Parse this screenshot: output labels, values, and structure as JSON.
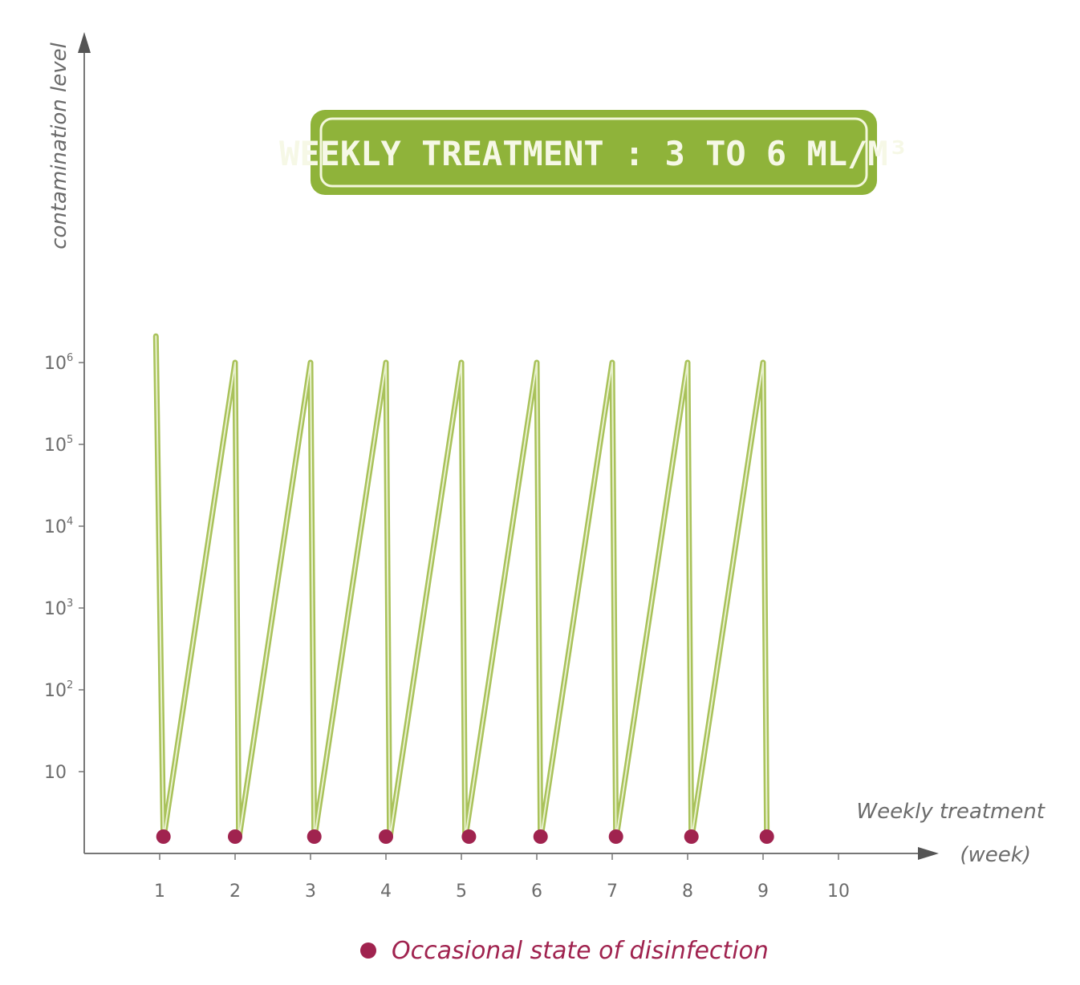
{
  "chart_data": {
    "type": "line",
    "title": "WEEKLY TREATMENT : 3 TO 6 ML/M³",
    "ylabel": "contamination level",
    "xlabel": "Weekly treatment",
    "xunit": "(week)",
    "xticks": [
      "1",
      "2",
      "3",
      "4",
      "5",
      "6",
      "7",
      "8",
      "9",
      "10"
    ],
    "yticks": [
      {
        "base": "10",
        "exp": ""
      },
      {
        "base": "10",
        "exp": "2"
      },
      {
        "base": "10",
        "exp": "3"
      },
      {
        "base": "10",
        "exp": "4"
      },
      {
        "base": "10",
        "exp": "5"
      },
      {
        "base": "10",
        "exp": "6"
      }
    ],
    "yscale": "log",
    "ylim": [
      1,
      10000000
    ],
    "xlim": [
      0,
      11
    ],
    "series": [
      {
        "name": "Weekly treatment",
        "color": "#a9c25a",
        "points": [
          [
            0.95,
            2100000
          ],
          [
            1.05,
            1.5
          ],
          [
            2.0,
            1000000
          ],
          [
            2.05,
            1.5
          ],
          [
            3.0,
            1000000
          ],
          [
            3.05,
            1.5
          ],
          [
            4.0,
            1000000
          ],
          [
            4.05,
            1.5
          ],
          [
            5.0,
            1000000
          ],
          [
            5.05,
            1.5
          ],
          [
            6.0,
            1000000
          ],
          [
            6.05,
            1.5
          ],
          [
            7.0,
            1000000
          ],
          [
            7.05,
            1.5
          ],
          [
            8.0,
            1000000
          ],
          [
            8.05,
            1.5
          ],
          [
            9.0,
            1000000
          ],
          [
            9.05,
            1.5
          ]
        ]
      }
    ],
    "markers": {
      "name": "Occasional state of disinfection",
      "color": "#a0234f",
      "points": [
        [
          1.05,
          1.5
        ],
        [
          2.0,
          1.5
        ],
        [
          3.05,
          1.5
        ],
        [
          4.0,
          1.5
        ],
        [
          5.1,
          1.5
        ],
        [
          6.05,
          1.5
        ],
        [
          7.05,
          1.5
        ],
        [
          8.05,
          1.5
        ],
        [
          9.05,
          1.5
        ]
      ]
    },
    "legend_position": "bottom-center",
    "title_box_color": "#8fb33a",
    "axis_color": "#777777"
  }
}
